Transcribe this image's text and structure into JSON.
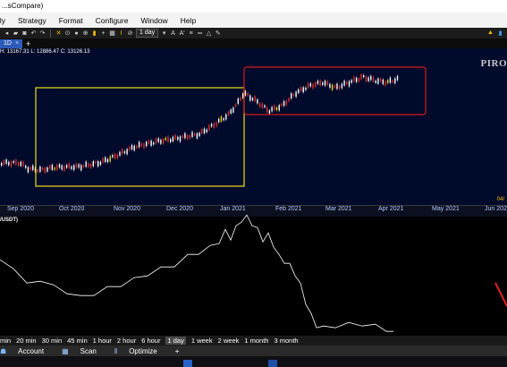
{
  "window": {
    "title": "...sCompare)"
  },
  "menu": [
    "ily",
    "Strategy",
    "Format",
    "Configure",
    "Window",
    "Help"
  ],
  "toolbar": {
    "timeframe": "1 day"
  },
  "tabs": {
    "active": "1D",
    "close": "×",
    "add": "+"
  },
  "chart": {
    "ohlc_text": "H: 13167.31  L: 12886.47  C: 13126.13",
    "watermark": "PIRO",
    "axis_tail": "04/",
    "months": [
      {
        "label": "Sep 2020"
      },
      {
        "label": "Oct 2020"
      },
      {
        "label": "Nov 2020"
      },
      {
        "label": "Dec 2020"
      },
      {
        "label": "Jan 2021"
      },
      {
        "label": "Feb 2021"
      },
      {
        "label": "Mar 2021"
      },
      {
        "label": "Apr 2021"
      },
      {
        "label": "May 2021"
      },
      {
        "label": "Jun 202"
      }
    ],
    "highlight_colors": {
      "yellow": "#e8e020",
      "red": "#d01c1c"
    },
    "candle_colors": {
      "up": "#ffffff",
      "down": "#e03030",
      "accent": "#ffd400"
    }
  },
  "indicator": {
    "label": "/USDT)"
  },
  "timeframes": [
    {
      "label": "min",
      "active": false
    },
    {
      "label": "20 min",
      "active": false
    },
    {
      "label": "30 min",
      "active": false
    },
    {
      "label": "45 min",
      "active": false
    },
    {
      "label": "1 hour",
      "active": false
    },
    {
      "label": "2 hour",
      "active": false
    },
    {
      "label": "6 hour",
      "active": false
    },
    {
      "label": "1 day",
      "active": true
    },
    {
      "label": "1 week",
      "active": false
    },
    {
      "label": "2 week",
      "active": false
    },
    {
      "label": "1 month",
      "active": false
    },
    {
      "label": "3 month",
      "active": false
    }
  ],
  "bottombar": {
    "account": "Account",
    "scan": "Scan",
    "optimize": "Optimize",
    "add": "+"
  }
}
